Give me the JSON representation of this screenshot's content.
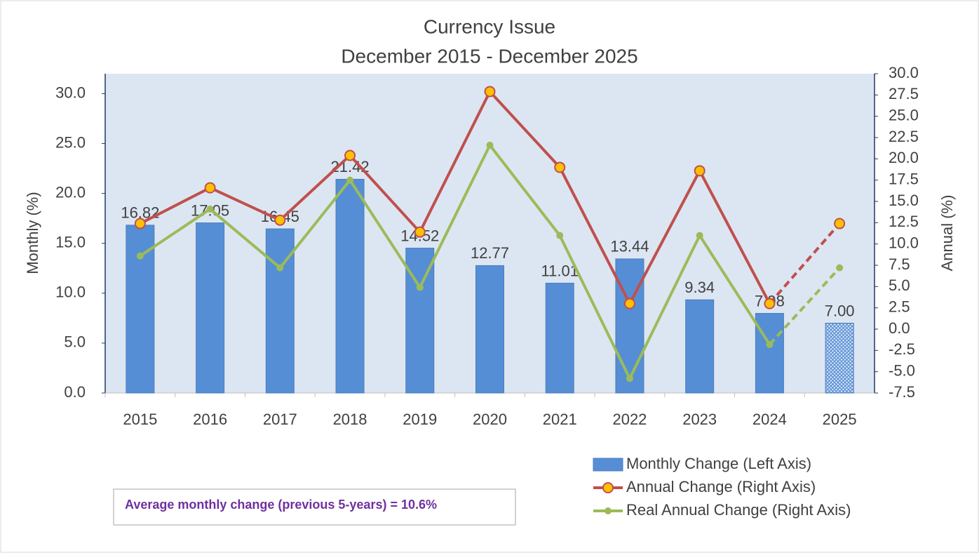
{
  "chart_data": {
    "type": "bar",
    "title": "Currency Issue",
    "subtitle": "December 2015 - December 2025",
    "y_label": "Monthly (%)",
    "y2_label": "Annual (%)",
    "categories": [
      "2015",
      "2016",
      "2017",
      "2018",
      "2019",
      "2020",
      "2021",
      "2022",
      "2023",
      "2024",
      "2025"
    ],
    "series": [
      {
        "name": "Monthly Change (Left Axis)",
        "type": "bar",
        "color": "#558ed5",
        "values": [
          16.82,
          17.05,
          16.45,
          21.42,
          14.52,
          12.77,
          11.01,
          13.44,
          9.34,
          7.98,
          7.0
        ],
        "value_labels": [
          "16.82",
          "17.05",
          "16.45",
          "21.42",
          "14.52",
          "12.77",
          "11.01",
          "13.44",
          "9.34",
          "7.98",
          "7.00"
        ]
      },
      {
        "name": "Annual Change (Right Axis)",
        "type": "line",
        "axis": "y2",
        "color": "#c0504d",
        "marker_color": "#ffc000",
        "values": [
          12.4,
          16.6,
          12.8,
          20.4,
          11.4,
          27.9,
          19.0,
          3.0,
          18.6,
          3.0,
          12.4
        ]
      },
      {
        "name": "Real Annual Change (Right Axis)",
        "type": "line",
        "axis": "y2",
        "color": "#9bbb59",
        "values": [
          8.6,
          14.1,
          7.2,
          17.5,
          4.9,
          21.6,
          11.0,
          -5.8,
          11.0,
          -1.8,
          7.2
        ]
      }
    ],
    "forecast_from": 10,
    "ylim": [
      0,
      32
    ],
    "yticks": [
      {
        "value": 0,
        "label": "0.0"
      },
      {
        "value": 5,
        "label": "5.0"
      },
      {
        "value": 10,
        "label": "10.0"
      },
      {
        "value": 15,
        "label": "15.0"
      },
      {
        "value": 20,
        "label": "20.0"
      },
      {
        "value": 25,
        "label": "25.0"
      },
      {
        "value": 30,
        "label": "30.0"
      }
    ],
    "y2lim": [
      -7.5,
      30
    ],
    "y2ticks": [
      -7.5,
      {
        "value": -5,
        "label": "-5.0"
      },
      -2.5,
      {
        "value": 0,
        "label": "0.0"
      },
      2.5,
      {
        "value": 5,
        "label": "5.0"
      },
      7.5,
      {
        "value": 10,
        "label": "10.0"
      },
      12.5,
      {
        "value": 15,
        "label": "15.0"
      },
      17.5,
      {
        "value": 20,
        "label": "20.0"
      },
      22.5,
      {
        "value": 25,
        "label": "25.0"
      },
      27.5,
      {
        "value": 30,
        "label": "30.0"
      }
    ],
    "annotation": "Average monthly change (previous 5-years) = 10.6%",
    "annotation_color": "#7030a0"
  }
}
